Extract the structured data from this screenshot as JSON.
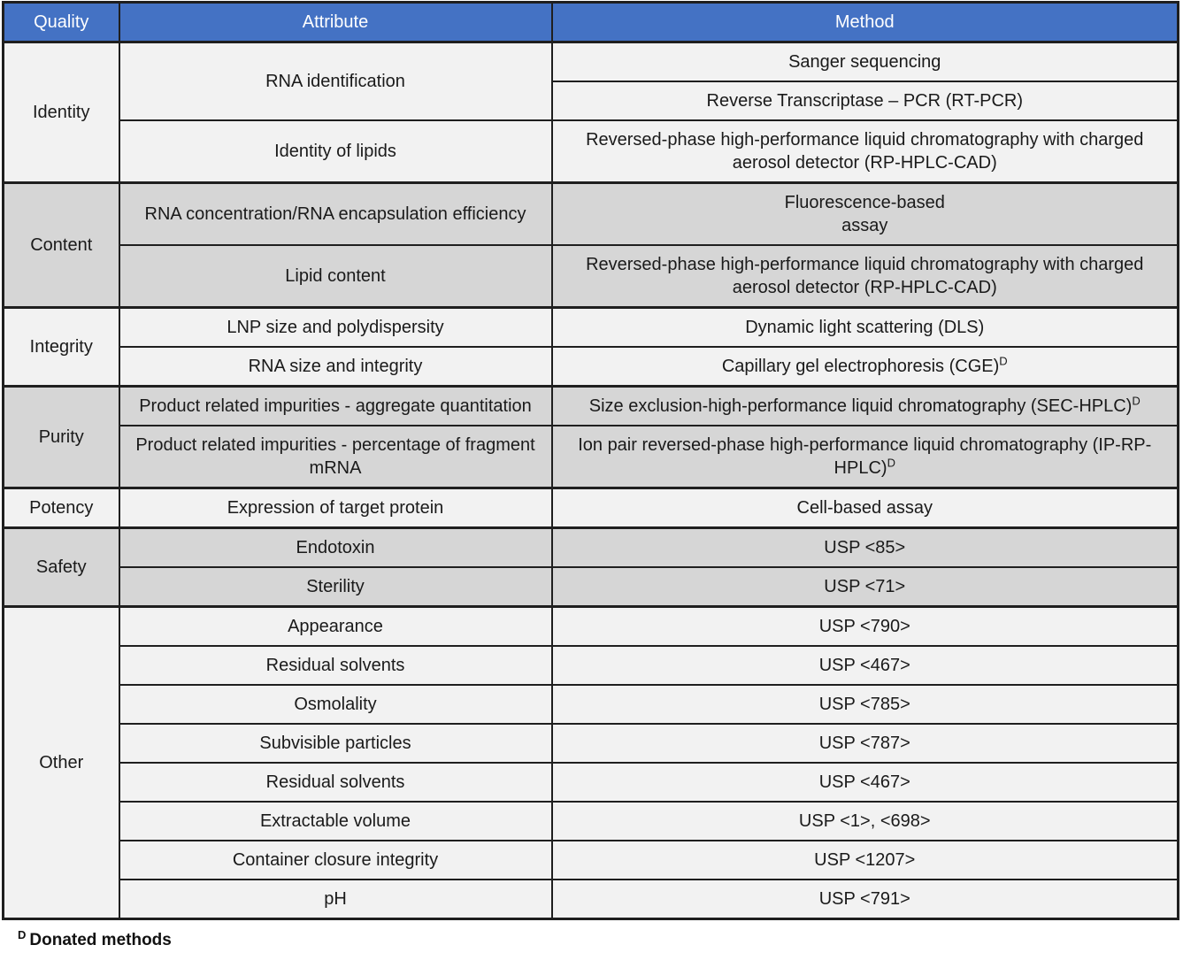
{
  "colors": {
    "header_bg": "#4472C4",
    "header_text": "#FFFFFF",
    "light_row_bg": "#F2F2F2",
    "dark_row_bg": "#D6D6D6",
    "border": "#1F1F1F"
  },
  "header": {
    "quality": "Quality",
    "attribute": "Attribute",
    "method": "Method"
  },
  "groups": [
    {
      "quality": "Identity",
      "tone": "light",
      "rows": [
        {
          "attribute": "RNA identification",
          "attribute_rowspan": 2,
          "method_lines": [
            "Sanger sequencing"
          ]
        },
        {
          "method_lines": [
            "Reverse Transcriptase – PCR (RT-PCR)"
          ]
        },
        {
          "attribute": "Identity of lipids",
          "method_lines": [
            "Reversed-phase high-performance liquid chromatography with charged aerosol detector (RP-HPLC-CAD)"
          ]
        }
      ]
    },
    {
      "quality": "Content",
      "tone": "dark",
      "rows": [
        {
          "attribute": "RNA concentration/RNA encapsulation efficiency",
          "method_lines": [
            "Fluorescence-based",
            "assay"
          ]
        },
        {
          "attribute": "Lipid content",
          "method_lines": [
            "Reversed-phase high-performance liquid chromatography with charged aerosol detector (RP-HPLC-CAD)"
          ]
        }
      ]
    },
    {
      "quality": "Integrity",
      "tone": "light",
      "rows": [
        {
          "attribute": "LNP size and polydispersity",
          "method_lines": [
            "Dynamic light scattering (DLS)"
          ]
        },
        {
          "attribute": "RNA size and integrity",
          "method_lines": [
            "Capillary gel electrophoresis (CGE)"
          ],
          "method_sup": "D"
        }
      ]
    },
    {
      "quality": "Purity",
      "tone": "dark",
      "rows": [
        {
          "attribute": "Product related impurities - aggregate quantitation",
          "method_lines": [
            "Size exclusion-high-performance liquid chromatography (SEC-HPLC)"
          ],
          "method_sup": "D"
        },
        {
          "attribute": "Product related impurities - percentage of fragment mRNA",
          "method_lines": [
            "Ion pair reversed-phase high-performance liquid chromatography (IP-RP-HPLC)"
          ],
          "method_sup": "D"
        }
      ]
    },
    {
      "quality": "Potency",
      "tone": "light",
      "rows": [
        {
          "attribute": "Expression of target protein",
          "method_lines": [
            "Cell-based assay"
          ]
        }
      ]
    },
    {
      "quality": "Safety",
      "tone": "dark",
      "rows": [
        {
          "attribute": "Endotoxin",
          "method_lines": [
            "USP <85>"
          ]
        },
        {
          "attribute": "Sterility",
          "method_lines": [
            "USP <71>"
          ]
        }
      ]
    },
    {
      "quality": "Other",
      "tone": "light",
      "rows": [
        {
          "attribute": "Appearance",
          "method_lines": [
            "USP <790>"
          ]
        },
        {
          "attribute": "Residual solvents",
          "method_lines": [
            "USP <467>"
          ]
        },
        {
          "attribute": "Osmolality",
          "method_lines": [
            "USP <785>"
          ]
        },
        {
          "attribute": "Subvisible particles",
          "method_lines": [
            "USP <787>"
          ]
        },
        {
          "attribute": "Residual solvents",
          "method_lines": [
            "USP <467>"
          ]
        },
        {
          "attribute": "Extractable volume",
          "method_lines": [
            "USP <1>, <698>"
          ]
        },
        {
          "attribute": "Container closure integrity",
          "method_lines": [
            "USP <1207>"
          ]
        },
        {
          "attribute": "pH",
          "method_lines": [
            "USP <791>"
          ]
        }
      ]
    }
  ],
  "footnote": {
    "sup": "D",
    "text": "Donated methods"
  }
}
